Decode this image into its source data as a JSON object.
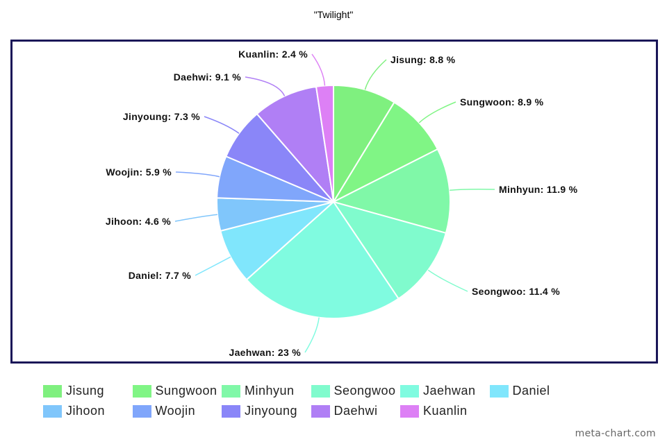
{
  "chart_data": {
    "type": "pie",
    "title": "\"Twilight\"",
    "unit": "%",
    "slices": [
      {
        "label": "Jisung",
        "value": 8.8,
        "display": "Jisung: 8.8 %",
        "color": "#7ff07f"
      },
      {
        "label": "Sungwoon",
        "value": 8.9,
        "display": "Sungwoon: 8.9 %",
        "color": "#80f585"
      },
      {
        "label": "Minhyun",
        "value": 11.9,
        "display": "Minhyun: 11.9 %",
        "color": "#80f8a8"
      },
      {
        "label": "Seongwoo",
        "value": 11.4,
        "display": "Seongwoo: 11.4 %",
        "color": "#80fbcd"
      },
      {
        "label": "Jaehwan",
        "value": 23,
        "display": "Jaehwan: 23 %",
        "color": "#80fbe0"
      },
      {
        "label": "Daniel",
        "value": 7.7,
        "display": "Daniel: 7.7 %",
        "color": "#80e6fc"
      },
      {
        "label": "Jihoon",
        "value": 4.6,
        "display": "Jihoon: 4.6 %",
        "color": "#80c6fb"
      },
      {
        "label": "Woojin",
        "value": 5.9,
        "display": "Woojin: 5.9 %",
        "color": "#80a6fb"
      },
      {
        "label": "Jinyoung",
        "value": 7.3,
        "display": "Jinyoung: 7.3 %",
        "color": "#8a86f8"
      },
      {
        "label": "Daehwi",
        "value": 9.1,
        "display": "Daehwi: 9.1 %",
        "color": "#b07ff5"
      },
      {
        "label": "Kuanlin",
        "value": 2.4,
        "display": "Kuanlin: 2.4 %",
        "color": "#dd80f5"
      }
    ],
    "legend": {
      "placement": "bottom",
      "rows": [
        [
          "Jisung",
          "Sungwoon",
          "Minhyun",
          "Seongwoo",
          "Jaehwan",
          "Daniel"
        ],
        [
          "Jihoon",
          "Woojin",
          "Jinyoung",
          "Daehwi",
          "Kuanlin"
        ]
      ]
    },
    "frame_color": "#1a1658"
  },
  "watermark": "meta-chart.com"
}
